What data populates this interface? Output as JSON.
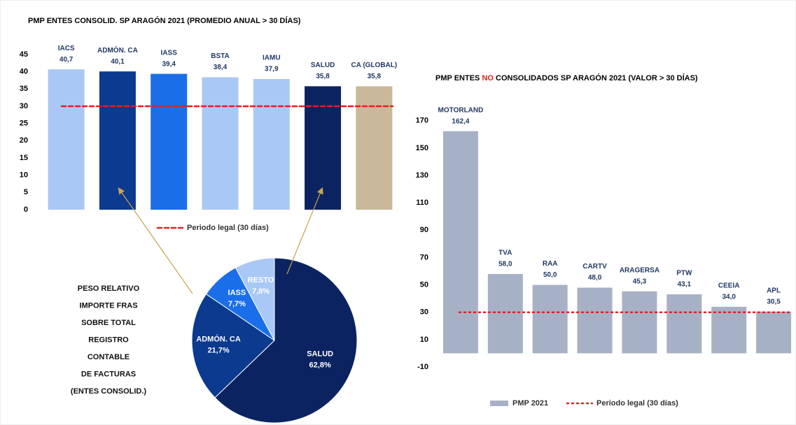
{
  "chart_data": [
    {
      "type": "bar",
      "title": "PMP ENTES CONSOLID. SP ARAGÓN 2021 (PROMEDIO ANUAL > 30 DÍAS)",
      "categories": [
        "IACS",
        "ADMÓN. CA",
        "IASS",
        "BSTA",
        "IAMU",
        "SALUD",
        "CA (GLOBAL)"
      ],
      "values": [
        40.7,
        40.1,
        39.4,
        38.4,
        37.9,
        35.8,
        35.8
      ],
      "value_labels": [
        "40,7",
        "40,1",
        "39,4",
        "38,4",
        "37,9",
        "35,8",
        "35,8"
      ],
      "colors": [
        "#a9c8f5",
        "#0b3a8f",
        "#1a6fe8",
        "#a9c8f5",
        "#a9c8f5",
        "#0b2461",
        "#c9b99a"
      ],
      "ylim": [
        0,
        45
      ],
      "yticks": [
        0,
        5,
        10,
        15,
        20,
        25,
        30,
        35,
        40,
        45
      ],
      "reference_line": {
        "value": 30,
        "label": "Periodo legal (30 días)",
        "color": "#e02020"
      }
    },
    {
      "type": "pie",
      "title_lines": [
        "PESO RELATIVO",
        "IMPORTE FRAS",
        "SOBRE TOTAL",
        "REGISTRO",
        "CONTABLE",
        "DE FACTURAS",
        "(ENTES CONSOLID.)"
      ],
      "categories": [
        "SALUD",
        "ADMÓN. CA",
        "IASS",
        "RESTO"
      ],
      "values": [
        62.8,
        21.7,
        7.7,
        7.8
      ],
      "value_labels": [
        "62,8%",
        "21,7%",
        "7,7%",
        "7,8%"
      ],
      "colors": [
        "#0b2461",
        "#0b3a8f",
        "#1a6fe8",
        "#a9c8f5"
      ]
    },
    {
      "type": "bar",
      "title": [
        "PMP ENTES ",
        "NO",
        " CONSOLIDADOS SP ARAGÓN 2021 (VALOR > 30 DÍAS)"
      ],
      "title_highlight": {
        "index": 1,
        "color": "#e02020"
      },
      "categories": [
        "MOTORLAND",
        "TVA",
        "RAA",
        "CARTV",
        "ARAGERSA",
        "PTW",
        "CEEIA",
        "APL"
      ],
      "series": [
        {
          "name": "PMP 2021",
          "color": "#a7b1c6",
          "values": [
            162.4,
            58.0,
            50.0,
            48.0,
            45.3,
            43.1,
            34.0,
            30.5
          ],
          "value_labels": [
            "162,4",
            "58,0",
            "50,0",
            "48,0",
            "45,3",
            "43,1",
            "34,0",
            "30,5"
          ]
        }
      ],
      "ylim": [
        -10,
        175
      ],
      "yticks": [
        -10,
        10,
        30,
        50,
        70,
        90,
        110,
        130,
        150,
        170
      ],
      "reference_line": {
        "value": 30,
        "label": "Periodo legal (30 días)",
        "color": "#e02020"
      }
    }
  ]
}
